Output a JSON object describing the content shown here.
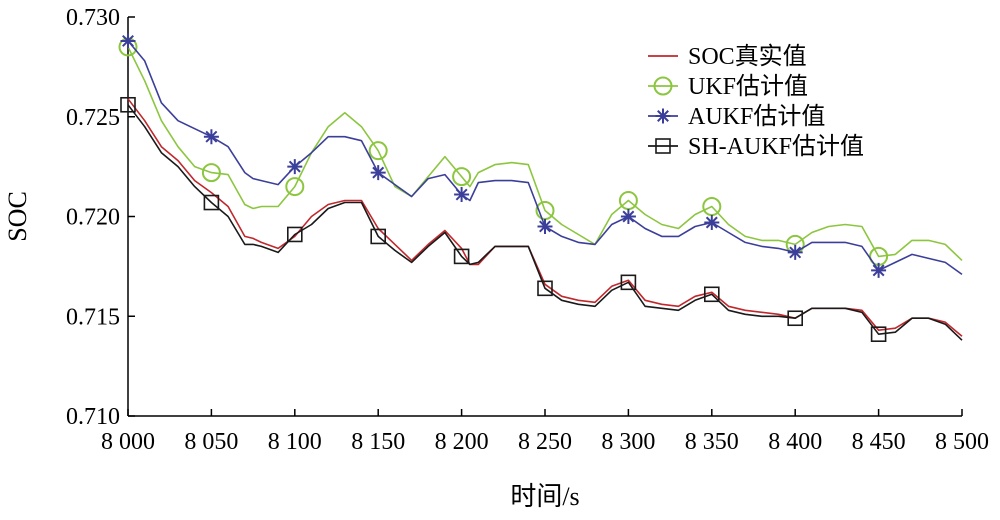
{
  "chart_data": {
    "type": "line",
    "title": "",
    "xlabel": "时间/s",
    "ylabel": "SOC",
    "xlim": [
      8000,
      8500
    ],
    "ylim": [
      0.71,
      0.73
    ],
    "x_ticks": [
      8000,
      8050,
      8100,
      8150,
      8200,
      8250,
      8300,
      8350,
      8400,
      8450,
      8500
    ],
    "x_tick_labels": [
      "8 000",
      "8 050",
      "8 100",
      "8 150",
      "8 200",
      "8 250",
      "8 300",
      "8 350",
      "8 400",
      "8 450",
      "8 500"
    ],
    "y_ticks": [
      0.71,
      0.715,
      0.72,
      0.725,
      0.73
    ],
    "y_tick_labels": [
      "0.710",
      "0.715",
      "0.720",
      "0.725",
      "0.730"
    ],
    "grid": false,
    "legend_position": "top-right",
    "x": [
      8000,
      8010,
      8020,
      8030,
      8040,
      8050,
      8060,
      8070,
      8075,
      8080,
      8090,
      8100,
      8110,
      8120,
      8130,
      8140,
      8150,
      8160,
      8170,
      8180,
      8190,
      8200,
      8205,
      8210,
      8220,
      8230,
      8240,
      8250,
      8260,
      8270,
      8280,
      8290,
      8300,
      8310,
      8320,
      8330,
      8340,
      8350,
      8360,
      8370,
      8380,
      8390,
      8400,
      8410,
      8420,
      8430,
      8440,
      8450,
      8460,
      8470,
      8480,
      8490,
      8500
    ],
    "series": [
      {
        "name": "SOC真实值",
        "color": "#c0282d",
        "marker": "none",
        "values": [
          0.7259,
          0.7248,
          0.7235,
          0.7228,
          0.7218,
          0.7212,
          0.7205,
          0.719,
          0.7189,
          0.7187,
          0.7184,
          0.719,
          0.72,
          0.7206,
          0.7208,
          0.7208,
          0.7194,
          0.7186,
          0.7178,
          0.7186,
          0.7193,
          0.7184,
          0.7176,
          0.7176,
          0.7185,
          0.7185,
          0.7185,
          0.7166,
          0.716,
          0.7158,
          0.7157,
          0.7165,
          0.7168,
          0.7158,
          0.7156,
          0.7155,
          0.716,
          0.7162,
          0.7155,
          0.7153,
          0.7152,
          0.7151,
          0.7149,
          0.7154,
          0.7154,
          0.7154,
          0.7153,
          0.7143,
          0.7144,
          0.7149,
          0.7149,
          0.7147,
          0.714
        ]
      },
      {
        "name": "UKF估计值",
        "color": "#8cc63f",
        "marker": "circle",
        "values": [
          0.7285,
          0.7268,
          0.7248,
          0.7235,
          0.7225,
          0.7222,
          0.7221,
          0.7206,
          0.7204,
          0.7205,
          0.7205,
          0.7215,
          0.7232,
          0.7245,
          0.7252,
          0.7245,
          0.7233,
          0.7215,
          0.721,
          0.722,
          0.723,
          0.722,
          0.7215,
          0.7222,
          0.7226,
          0.7227,
          0.7226,
          0.7203,
          0.7196,
          0.7191,
          0.7186,
          0.7201,
          0.7208,
          0.7201,
          0.7196,
          0.7194,
          0.7201,
          0.7205,
          0.7196,
          0.719,
          0.7188,
          0.7188,
          0.7186,
          0.7192,
          0.7195,
          0.7196,
          0.7195,
          0.718,
          0.7181,
          0.7188,
          0.7188,
          0.7186,
          0.7178
        ]
      },
      {
        "name": "AUKF估计值",
        "color": "#3b3f9a",
        "marker": "star",
        "values": [
          0.7288,
          0.7278,
          0.7257,
          0.7248,
          0.7244,
          0.724,
          0.7235,
          0.7222,
          0.7219,
          0.7218,
          0.7216,
          0.7225,
          0.7232,
          0.724,
          0.724,
          0.7238,
          0.7222,
          0.7216,
          0.721,
          0.7219,
          0.7221,
          0.7211,
          0.7208,
          0.7217,
          0.7218,
          0.7218,
          0.7217,
          0.7195,
          0.719,
          0.7187,
          0.7186,
          0.7196,
          0.72,
          0.7194,
          0.719,
          0.719,
          0.7195,
          0.7197,
          0.7192,
          0.7187,
          0.7185,
          0.7184,
          0.7182,
          0.7187,
          0.7187,
          0.7187,
          0.7185,
          0.7173,
          0.7177,
          0.7181,
          0.7179,
          0.7177,
          0.7171
        ]
      },
      {
        "name": "SH-AUKF估计值",
        "color": "#1a1a1a",
        "marker": "square",
        "values": [
          0.7256,
          0.7245,
          0.7232,
          0.7225,
          0.7215,
          0.7207,
          0.72,
          0.7186,
          0.7186,
          0.7185,
          0.7182,
          0.7191,
          0.7196,
          0.7204,
          0.7207,
          0.7207,
          0.719,
          0.7183,
          0.7177,
          0.7185,
          0.7192,
          0.718,
          0.7176,
          0.7177,
          0.7185,
          0.7185,
          0.7185,
          0.7164,
          0.7158,
          0.7156,
          0.7155,
          0.7163,
          0.7167,
          0.7155,
          0.7154,
          0.7153,
          0.7158,
          0.7161,
          0.7153,
          0.7151,
          0.715,
          0.715,
          0.7149,
          0.7154,
          0.7154,
          0.7154,
          0.7152,
          0.7141,
          0.7142,
          0.7149,
          0.7149,
          0.7146,
          0.7138
        ]
      }
    ],
    "marker_x": [
      8000,
      8050,
      8100,
      8150,
      8200,
      8250,
      8300,
      8350,
      8400,
      8450
    ]
  }
}
